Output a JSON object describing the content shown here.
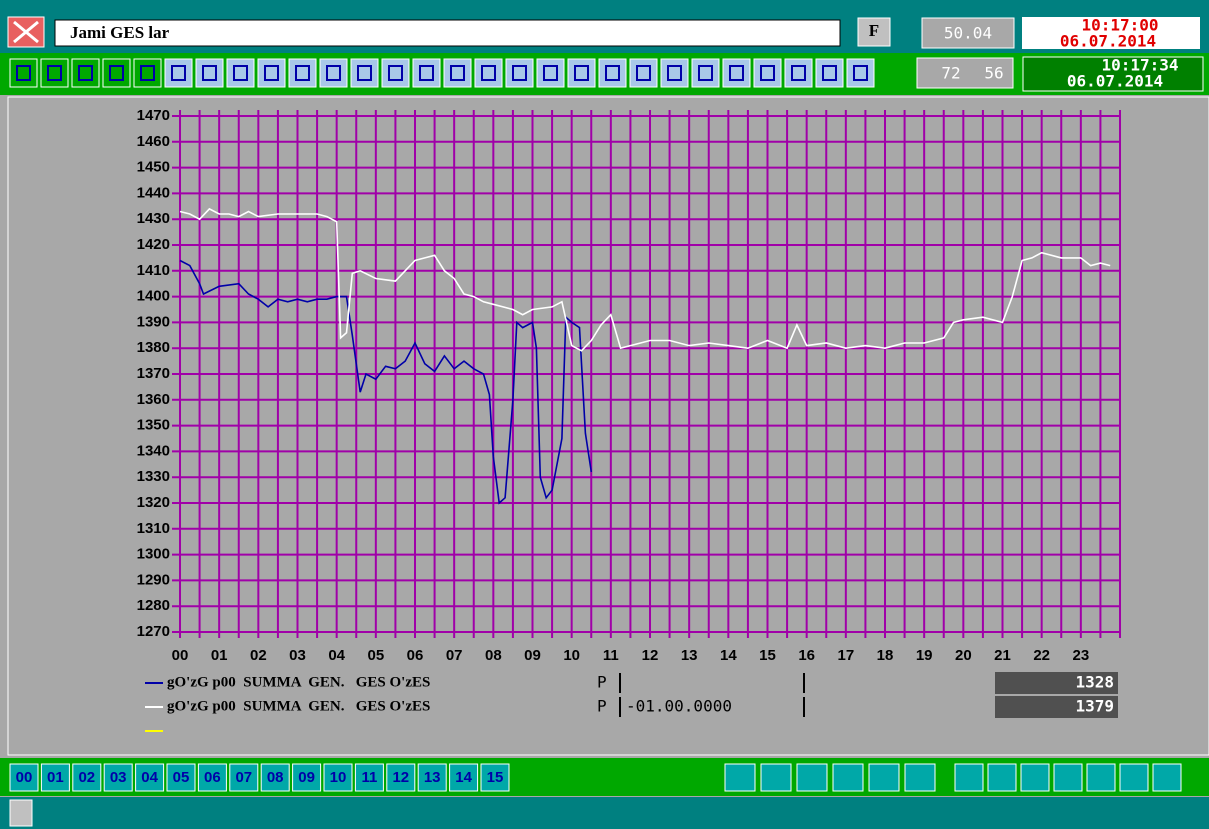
{
  "header": {
    "title": "Jami GES lar",
    "f_button": "F",
    "frequency": 50.04,
    "time_set": "10:17:00",
    "date_set": "06.07.2014",
    "counter_a": 72,
    "counter_b": 56,
    "time_now": "10:17:34",
    "date_now": "06.07.2014"
  },
  "chart_data": {
    "type": "line",
    "xlim": [
      0,
      24
    ],
    "xticks": [
      {
        "value": 0,
        "label": "00"
      },
      {
        "value": 1,
        "label": "01"
      },
      {
        "value": 2,
        "label": "02"
      },
      {
        "value": 3,
        "label": "03"
      },
      {
        "value": 4,
        "label": "04"
      },
      {
        "value": 5,
        "label": "05"
      },
      {
        "value": 6,
        "label": "06"
      },
      {
        "value": 7,
        "label": "07"
      },
      {
        "value": 8,
        "label": "08"
      },
      {
        "value": 9,
        "label": "09"
      },
      {
        "value": 10,
        "label": "10"
      },
      {
        "value": 11,
        "label": "11"
      },
      {
        "value": 12,
        "label": "12"
      },
      {
        "value": 13,
        "label": "13"
      },
      {
        "value": 14,
        "label": "14"
      },
      {
        "value": 15,
        "label": "15"
      },
      {
        "value": 16,
        "label": "16"
      },
      {
        "value": 17,
        "label": "17"
      },
      {
        "value": 18,
        "label": "18"
      },
      {
        "value": 19,
        "label": "19"
      },
      {
        "value": 20,
        "label": "20"
      },
      {
        "value": 21,
        "label": "21"
      },
      {
        "value": 22,
        "label": "22"
      },
      {
        "value": 23,
        "label": "23"
      }
    ],
    "x_minor_ticks": [
      0.5,
      1.5,
      2.5,
      3.5,
      4.5,
      5.5,
      6.5,
      7.5,
      8.5,
      9.5,
      10.5,
      11.5,
      12.5,
      13.5,
      14.5,
      15.5,
      16.5,
      17.5,
      18.5,
      19.5,
      20.5,
      21.5,
      22.5,
      23.5,
      24
    ],
    "ylim": [
      1270,
      1470
    ],
    "yticks": [
      1270,
      1280,
      1290,
      1300,
      1310,
      1320,
      1330,
      1340,
      1350,
      1360,
      1370,
      1380,
      1390,
      1400,
      1410,
      1420,
      1430,
      1440,
      1450,
      1460,
      1470
    ],
    "grid": true,
    "grid_color": "#a000a8",
    "series": [
      {
        "name": "gO'zG p00  SUMMA  GEN.   GES O'zES",
        "flag": "P",
        "current": 1328,
        "color": "#0000a8",
        "x": [
          0,
          0.25,
          0.5,
          0.6,
          1,
          1.5,
          1.75,
          2,
          2.25,
          2.5,
          2.75,
          3,
          3.25,
          3.5,
          3.75,
          4,
          4.25,
          4.4,
          4.6,
          4.75,
          5,
          5.25,
          5.5,
          5.75,
          6,
          6.25,
          6.5,
          6.75,
          7,
          7.25,
          7.5,
          7.75,
          7.9,
          8,
          8.15,
          8.3,
          8.5,
          8.6,
          8.75,
          9,
          9.1,
          9.2,
          9.35,
          9.5,
          9.75,
          9.85,
          10,
          10.2,
          10.35,
          10.5
        ],
        "values": [
          1414,
          1412,
          1405,
          1401,
          1404,
          1405,
          1401,
          1399,
          1396,
          1399,
          1398,
          1399,
          1398,
          1399,
          1399,
          1400,
          1400,
          1385,
          1363,
          1370,
          1368,
          1373,
          1372,
          1375,
          1382,
          1374,
          1371,
          1377,
          1372,
          1375,
          1372,
          1370,
          1362,
          1338,
          1320,
          1322,
          1360,
          1390,
          1388,
          1390,
          1380,
          1330,
          1322,
          1325,
          1345,
          1392,
          1390,
          1388,
          1347,
          1332
        ]
      },
      {
        "name": "gO'zG p00  SUMMA  GEN.   GES O'zES",
        "flag": "P",
        "reading": "-01.00.0000",
        "current": 1379,
        "color": "#ffffff",
        "x": [
          0,
          0.25,
          0.5,
          0.75,
          1,
          1.25,
          1.5,
          1.75,
          2,
          2.5,
          3,
          3.5,
          3.75,
          4,
          4.1,
          4.25,
          4.4,
          4.6,
          5,
          5.5,
          6,
          6.25,
          6.5,
          6.75,
          7,
          7.25,
          7.5,
          7.75,
          8,
          8.5,
          8.75,
          9,
          9.5,
          9.75,
          10,
          10.25,
          10.5,
          10.75,
          11,
          11.25,
          11.5,
          12,
          12.5,
          13,
          13.5,
          14,
          14.5,
          15,
          15.5,
          15.75,
          16,
          16.5,
          17,
          17.5,
          18,
          18.5,
          19,
          19.5,
          19.75,
          20,
          20.5,
          21,
          21.25,
          21.5,
          21.75,
          22,
          22.5,
          23,
          23.25,
          23.5,
          23.75
        ],
        "values": [
          1433,
          1432,
          1430,
          1434,
          1432,
          1432,
          1431,
          1433,
          1431,
          1432,
          1432,
          1432,
          1431,
          1429,
          1384,
          1386,
          1409,
          1410,
          1407,
          1406,
          1414,
          1415,
          1416,
          1410,
          1407,
          1401,
          1400,
          1398,
          1397,
          1395,
          1393,
          1395,
          1396,
          1398,
          1381,
          1379,
          1383,
          1389,
          1393,
          1380,
          1381,
          1383,
          1383,
          1381,
          1382,
          1381,
          1380,
          1383,
          1380,
          1389,
          1381,
          1382,
          1380,
          1381,
          1380,
          1382,
          1382,
          1384,
          1390,
          1391,
          1392,
          1390,
          1400,
          1414,
          1415,
          1417,
          1415,
          1415,
          1412,
          1413,
          1412
        ]
      }
    ]
  },
  "footer": {
    "hour_buttons": [
      "00",
      "01",
      "02",
      "03",
      "04",
      "05",
      "06",
      "07",
      "08",
      "09",
      "10",
      "11",
      "12",
      "13",
      "14",
      "15"
    ]
  }
}
